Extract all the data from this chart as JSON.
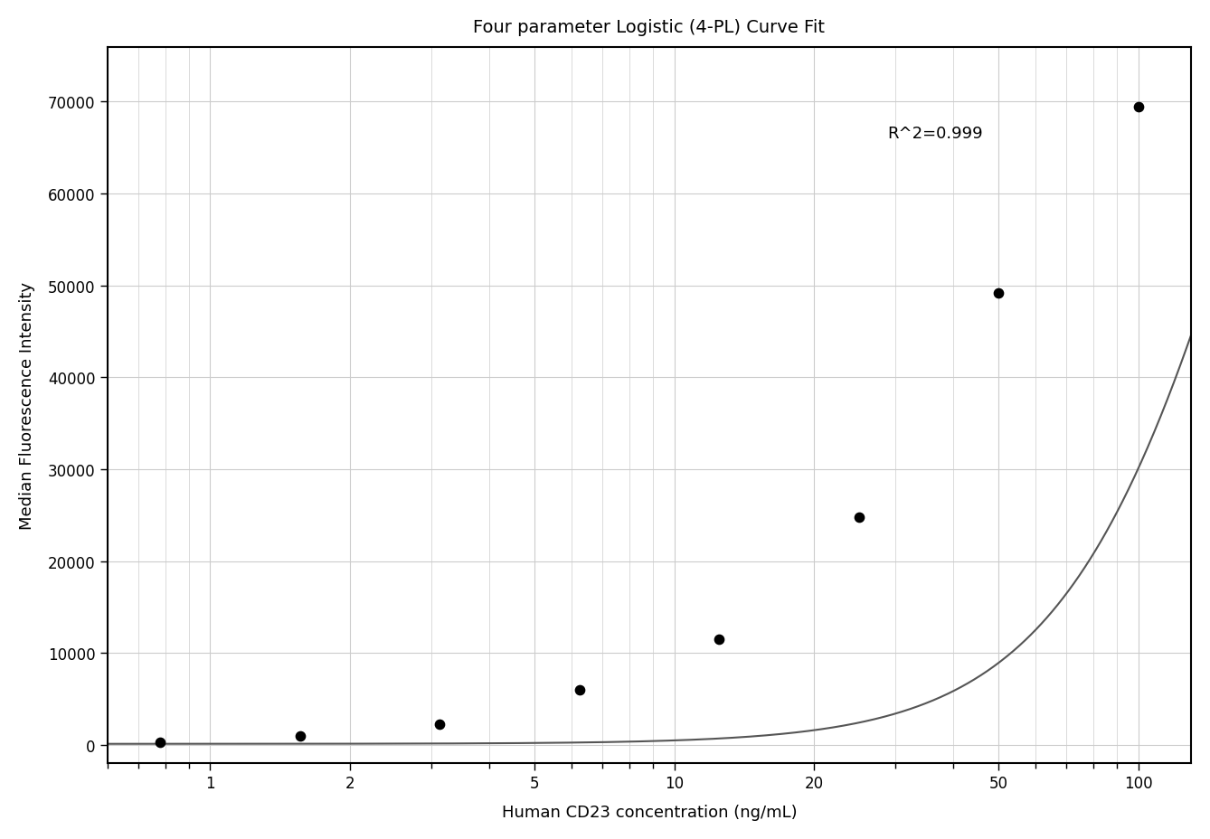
{
  "title": "Four parameter Logistic (4-PL) Curve Fit",
  "xlabel": "Human CD23 concentration (ng/mL)",
  "ylabel": "Median Fluorescence Intensity",
  "r_squared_text": "R^2=0.999",
  "data_points_x": [
    0.781,
    1.563,
    3.125,
    6.25,
    12.5,
    25,
    50,
    100
  ],
  "data_points_y": [
    300,
    1000,
    2200,
    6000,
    11500,
    24800,
    49200,
    69500
  ],
  "ylim": [
    -2000,
    76000
  ],
  "xlim_log": [
    0.6,
    130
  ],
  "xticks": [
    1,
    2,
    5,
    10,
    20,
    50,
    100
  ],
  "yticks": [
    0,
    10000,
    20000,
    30000,
    40000,
    50000,
    60000,
    70000
  ],
  "curve_color": "#555555",
  "dot_color": "#000000",
  "dot_size": 55,
  "bg_color": "#ffffff",
  "grid_color": "#cccccc",
  "title_fontsize": 14,
  "label_fontsize": 13,
  "tick_fontsize": 12,
  "annotation_fontsize": 13
}
